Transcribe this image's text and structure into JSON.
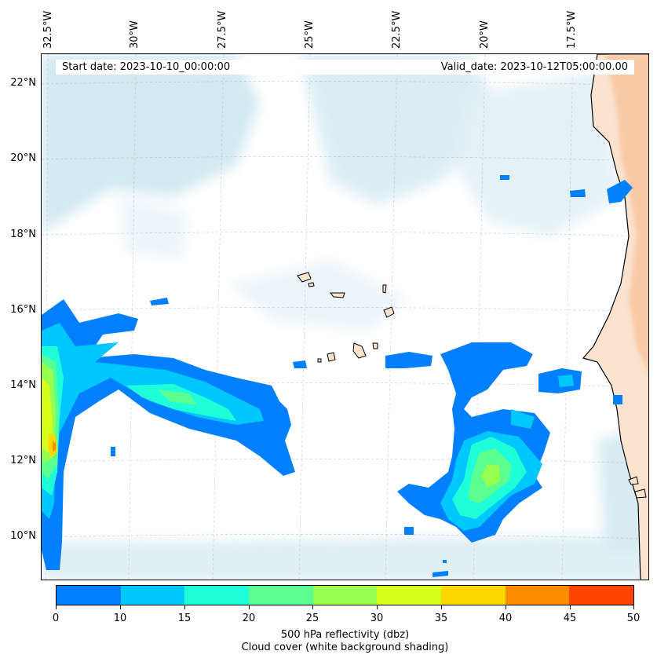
{
  "map": {
    "start_date": "Start date: 2023-10-10_00:00:00",
    "valid_date": "Valid_date: 2023-10-12T05:00:00.00",
    "lon_labels": [
      "32.5°W",
      "30°W",
      "27.5°W",
      "25°W",
      "22.5°W",
      "20°W",
      "17.5°W"
    ],
    "lat_labels": [
      "22°N",
      "20°N",
      "18°N",
      "16°N",
      "14°N",
      "12°N",
      "10°N"
    ],
    "colors": {
      "land": "#fbe3d0",
      "land_orange": "#f7b98a",
      "cloud": "#add8e6",
      "coastline": "#000000"
    }
  },
  "colorbar": {
    "ticks": [
      "0",
      "10",
      "15",
      "20",
      "25",
      "30",
      "35",
      "40",
      "45",
      "50"
    ],
    "colors": [
      "#0080ff",
      "#00c8ff",
      "#1effd9",
      "#5cff8f",
      "#96ff50",
      "#d7ff1e",
      "#ffd700",
      "#ff8c00",
      "#ff4500"
    ],
    "label_line1": "500 hPa reflectivity (dbz)",
    "label_line2": "Cloud cover (white background shading)"
  }
}
